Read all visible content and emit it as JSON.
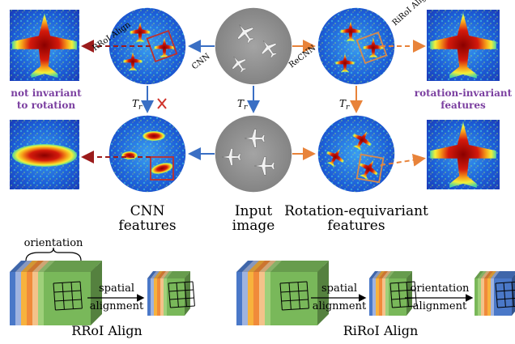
{
  "labels": {
    "rroi_align_top": "RRoI Align",
    "riroi_align_top": "RiRoI Align",
    "cnn_arrow": "CNN",
    "recnn_arrow": "ReCNN",
    "tr": "T",
    "tr_sub": "r",
    "not_invariant_1": "not invariant",
    "not_invariant_2": "to rotation",
    "rot_inv_1": "rotation-invariant",
    "rot_inv_2": "features",
    "cnn_features_1": "CNN",
    "cnn_features_2": "features",
    "input_image_1": "Input",
    "input_image_2": "image",
    "rot_eq_1": "Rotation-equivariant",
    "rot_eq_2": "features",
    "orientation": "orientation",
    "spatial": "spatial",
    "alignment": "alignment",
    "spatial2": "spatial",
    "alignment2": "alignment",
    "orientation2": "orientation",
    "alignment3": "alignment",
    "rroi_caption": "RRoI Align",
    "riroi_caption": "RiRoI Align"
  },
  "colors": {
    "blue_arrow": "#3a6fc4",
    "orange_arrow": "#e8833a",
    "dark_red_arrow": "#9b1b1b",
    "box_red": "#c0302c",
    "box_orange": "#d98a4a",
    "purple_text": "#7b3fa0",
    "cross": "#d0332b"
  },
  "stack_colors": [
    "#4a78c8",
    "#9fb3e0",
    "#f7b23d",
    "#f08a3a",
    "#f4c28a",
    "#9fd07a",
    "#79b85a"
  ]
}
